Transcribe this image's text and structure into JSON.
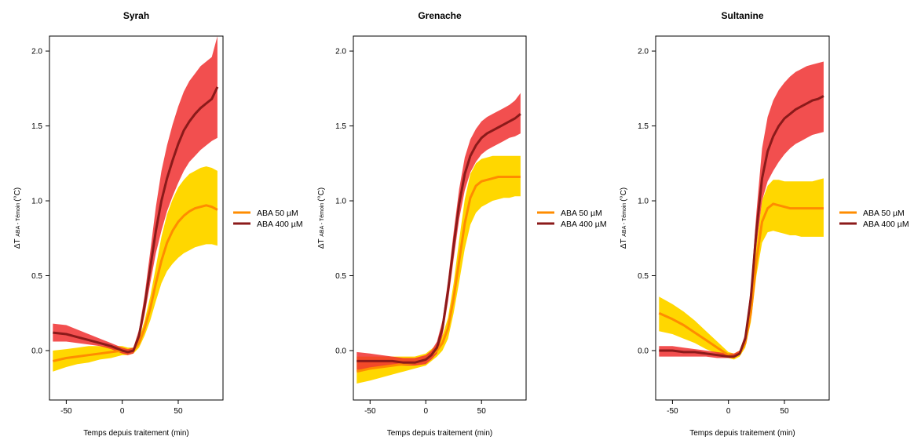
{
  "colors": {
    "aba50_line": "#FF8C00",
    "aba50_band": "#FFD700",
    "aba400_line": "#8B1A1A",
    "aba400_band": "#F03030"
  },
  "chart_data": [
    {
      "type": "line",
      "title": "Syrah",
      "xlabel": "Temps depuis traitement (min)",
      "ylabel_main": "ΔT",
      "ylabel_sub": "ABA - Témoin",
      "ylabel_unit": "(°C)",
      "xlim": [
        -65,
        90
      ],
      "ylim": [
        -0.33,
        2.1
      ],
      "xticks": [
        -50,
        0,
        50
      ],
      "yticks": [
        0.0,
        0.5,
        1.0,
        1.5,
        2.0
      ],
      "legend_position": "right",
      "series": [
        {
          "name": "ABA 50 µM",
          "x": [
            -62,
            -50,
            -40,
            -30,
            -20,
            -10,
            0,
            5,
            10,
            15,
            20,
            25,
            30,
            35,
            40,
            45,
            50,
            55,
            60,
            65,
            70,
            75,
            80,
            85
          ],
          "y": [
            -0.07,
            -0.05,
            -0.04,
            -0.03,
            -0.02,
            -0.01,
            0.0,
            -0.01,
            0.0,
            0.05,
            0.15,
            0.28,
            0.45,
            0.6,
            0.72,
            0.8,
            0.86,
            0.9,
            0.93,
            0.95,
            0.96,
            0.97,
            0.96,
            0.94
          ],
          "lower": [
            -0.14,
            -0.11,
            -0.09,
            -0.08,
            -0.06,
            -0.05,
            -0.03,
            -0.03,
            -0.02,
            0.02,
            0.1,
            0.2,
            0.33,
            0.45,
            0.53,
            0.58,
            0.62,
            0.65,
            0.67,
            0.69,
            0.7,
            0.71,
            0.71,
            0.7
          ],
          "upper": [
            0.0,
            0.01,
            0.02,
            0.03,
            0.03,
            0.03,
            0.03,
            0.02,
            0.02,
            0.08,
            0.2,
            0.36,
            0.56,
            0.76,
            0.91,
            1.01,
            1.09,
            1.14,
            1.18,
            1.2,
            1.22,
            1.23,
            1.22,
            1.2
          ]
        },
        {
          "name": "ABA 400 µM",
          "x": [
            -62,
            -50,
            -40,
            -30,
            -20,
            -10,
            0,
            5,
            10,
            15,
            20,
            25,
            30,
            35,
            40,
            45,
            50,
            55,
            60,
            65,
            70,
            75,
            80,
            85
          ],
          "y": [
            0.12,
            0.11,
            0.09,
            0.07,
            0.05,
            0.03,
            0.0,
            -0.01,
            0.0,
            0.1,
            0.3,
            0.55,
            0.8,
            1.0,
            1.15,
            1.27,
            1.38,
            1.47,
            1.53,
            1.58,
            1.62,
            1.65,
            1.68,
            1.76
          ],
          "lower": [
            0.06,
            0.06,
            0.05,
            0.04,
            0.03,
            0.01,
            -0.02,
            -0.03,
            -0.02,
            0.06,
            0.24,
            0.45,
            0.65,
            0.8,
            0.93,
            1.03,
            1.12,
            1.2,
            1.26,
            1.3,
            1.34,
            1.37,
            1.4,
            1.42
          ],
          "upper": [
            0.18,
            0.17,
            0.14,
            0.11,
            0.08,
            0.05,
            0.02,
            0.01,
            0.02,
            0.14,
            0.37,
            0.66,
            0.96,
            1.2,
            1.37,
            1.51,
            1.63,
            1.73,
            1.8,
            1.85,
            1.9,
            1.93,
            1.96,
            2.1
          ]
        }
      ]
    },
    {
      "type": "line",
      "title": "Grenache",
      "xlabel": "Temps depuis traitement (min)",
      "ylabel_main": "ΔT",
      "ylabel_sub": "ABA - Témoin",
      "ylabel_unit": "(°C)",
      "xlim": [
        -65,
        90
      ],
      "ylim": [
        -0.33,
        2.1
      ],
      "xticks": [
        -50,
        0,
        50
      ],
      "yticks": [
        0.0,
        0.5,
        1.0,
        1.5,
        2.0
      ],
      "legend_position": "right",
      "series": [
        {
          "name": "ABA 50 µM",
          "x": [
            -62,
            -50,
            -40,
            -30,
            -20,
            -10,
            0,
            5,
            10,
            15,
            20,
            25,
            30,
            35,
            40,
            45,
            50,
            55,
            60,
            65,
            70,
            75,
            80,
            85
          ],
          "y": [
            -0.14,
            -0.12,
            -0.11,
            -0.1,
            -0.09,
            -0.08,
            -0.06,
            -0.03,
            0.0,
            0.05,
            0.15,
            0.35,
            0.6,
            0.85,
            1.02,
            1.1,
            1.13,
            1.14,
            1.15,
            1.16,
            1.16,
            1.16,
            1.16,
            1.16
          ],
          "lower": [
            -0.22,
            -0.2,
            -0.18,
            -0.16,
            -0.14,
            -0.12,
            -0.1,
            -0.07,
            -0.04,
            0.0,
            0.08,
            0.25,
            0.46,
            0.68,
            0.84,
            0.92,
            0.96,
            0.98,
            1.0,
            1.01,
            1.02,
            1.02,
            1.03,
            1.03
          ],
          "upper": [
            -0.04,
            -0.04,
            -0.04,
            -0.04,
            -0.04,
            -0.04,
            -0.02,
            0.01,
            0.04,
            0.1,
            0.22,
            0.45,
            0.74,
            1.01,
            1.18,
            1.25,
            1.28,
            1.29,
            1.3,
            1.3,
            1.3,
            1.3,
            1.3,
            1.3
          ]
        },
        {
          "name": "ABA 400 µM",
          "x": [
            -62,
            -50,
            -40,
            -30,
            -20,
            -10,
            0,
            5,
            10,
            15,
            20,
            25,
            30,
            35,
            40,
            45,
            50,
            55,
            60,
            65,
            70,
            75,
            80,
            85
          ],
          "y": [
            -0.07,
            -0.07,
            -0.07,
            -0.07,
            -0.08,
            -0.08,
            -0.06,
            -0.03,
            0.02,
            0.15,
            0.4,
            0.7,
            0.98,
            1.18,
            1.3,
            1.37,
            1.42,
            1.45,
            1.47,
            1.49,
            1.51,
            1.53,
            1.55,
            1.58
          ],
          "lower": [
            -0.13,
            -0.12,
            -0.11,
            -0.1,
            -0.1,
            -0.1,
            -0.09,
            -0.06,
            -0.02,
            0.1,
            0.33,
            0.61,
            0.88,
            1.07,
            1.19,
            1.26,
            1.31,
            1.34,
            1.36,
            1.38,
            1.4,
            1.42,
            1.43,
            1.45
          ],
          "upper": [
            -0.01,
            -0.02,
            -0.03,
            -0.04,
            -0.05,
            -0.05,
            -0.03,
            0.0,
            0.06,
            0.2,
            0.47,
            0.79,
            1.08,
            1.29,
            1.41,
            1.48,
            1.53,
            1.56,
            1.58,
            1.6,
            1.62,
            1.64,
            1.67,
            1.72
          ]
        }
      ]
    },
    {
      "type": "line",
      "title": "Sultanine",
      "xlabel": "Temps depuis traitement (min)",
      "ylabel_main": "ΔT",
      "ylabel_sub": "ABA - Témoin",
      "ylabel_unit": "(°C)",
      "xlim": [
        -65,
        90
      ],
      "ylim": [
        -0.33,
        2.1
      ],
      "xticks": [
        -50,
        0,
        50
      ],
      "yticks": [
        0.0,
        0.5,
        1.0,
        1.5,
        2.0
      ],
      "legend_position": "right",
      "series": [
        {
          "name": "ABA 50 µM",
          "x": [
            -62,
            -50,
            -40,
            -30,
            -20,
            -10,
            0,
            5,
            10,
            15,
            20,
            25,
            30,
            35,
            40,
            45,
            50,
            55,
            60,
            65,
            70,
            75,
            80,
            85
          ],
          "y": [
            0.25,
            0.21,
            0.17,
            0.12,
            0.07,
            0.02,
            -0.03,
            -0.04,
            -0.02,
            0.05,
            0.25,
            0.6,
            0.86,
            0.95,
            0.98,
            0.97,
            0.96,
            0.95,
            0.95,
            0.95,
            0.95,
            0.95,
            0.95,
            0.95
          ],
          "lower": [
            0.13,
            0.11,
            0.08,
            0.05,
            0.01,
            -0.02,
            -0.05,
            -0.06,
            -0.04,
            0.02,
            0.19,
            0.5,
            0.72,
            0.79,
            0.8,
            0.79,
            0.78,
            0.77,
            0.77,
            0.76,
            0.76,
            0.76,
            0.76,
            0.76
          ],
          "upper": [
            0.36,
            0.31,
            0.26,
            0.2,
            0.13,
            0.06,
            -0.01,
            -0.02,
            0.0,
            0.09,
            0.32,
            0.7,
            1.0,
            1.1,
            1.14,
            1.14,
            1.13,
            1.13,
            1.13,
            1.13,
            1.13,
            1.13,
            1.14,
            1.15
          ]
        },
        {
          "name": "ABA 400 µM",
          "x": [
            -62,
            -50,
            -40,
            -30,
            -20,
            -10,
            0,
            5,
            10,
            15,
            20,
            25,
            30,
            35,
            40,
            45,
            50,
            55,
            60,
            65,
            70,
            75,
            80,
            85
          ],
          "y": [
            0.0,
            0.0,
            -0.01,
            -0.01,
            -0.02,
            -0.03,
            -0.04,
            -0.04,
            -0.02,
            0.08,
            0.35,
            0.8,
            1.15,
            1.33,
            1.43,
            1.5,
            1.55,
            1.58,
            1.61,
            1.63,
            1.65,
            1.67,
            1.68,
            1.7
          ],
          "lower": [
            -0.04,
            -0.04,
            -0.04,
            -0.04,
            -0.04,
            -0.05,
            -0.05,
            -0.05,
            -0.03,
            0.06,
            0.3,
            0.7,
            1.0,
            1.13,
            1.2,
            1.26,
            1.31,
            1.35,
            1.38,
            1.4,
            1.42,
            1.44,
            1.45,
            1.46
          ],
          "upper": [
            0.03,
            0.03,
            0.02,
            0.01,
            0.0,
            -0.01,
            -0.02,
            -0.02,
            0.0,
            0.11,
            0.42,
            0.92,
            1.35,
            1.56,
            1.67,
            1.74,
            1.79,
            1.83,
            1.86,
            1.88,
            1.9,
            1.91,
            1.92,
            1.93
          ]
        }
      ]
    }
  ]
}
